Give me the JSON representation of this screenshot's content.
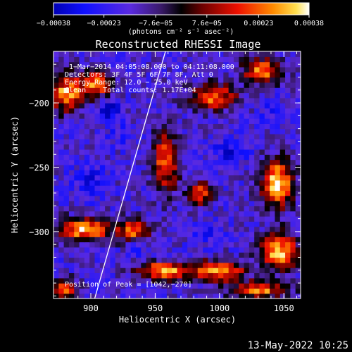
{
  "footer": {
    "timestamp": "13-May-2022 10:25"
  },
  "chart_data": {
    "type": "heatmap",
    "title": "Reconstructed RHESSI Image",
    "xlabel": "Heliocentric X (arcsec)",
    "ylabel": "Heliocentric Y (arcsec)",
    "xlim": [
      871,
      1063
    ],
    "ylim": [
      -352,
      -160
    ],
    "xticks": [
      900,
      950,
      1000,
      1050
    ],
    "yticks": [
      -200,
      -250,
      -300
    ],
    "xtick_labels": [
      "900",
      "950",
      "1000",
      "1050"
    ],
    "ytick_labels": [
      "−200",
      "−250",
      "−300"
    ],
    "colorbar": {
      "range": [
        -0.00038,
        0.00038
      ],
      "ticks": [
        -0.00038,
        -0.00023,
        -7.6e-05,
        7.6e-05,
        0.00023,
        0.00038
      ],
      "tick_labels": [
        "−0.00038",
        "−0.00023",
        "−7.6e−05",
        "7.6e−05",
        "0.00023",
        "0.00038"
      ],
      "unit_label": "(photons cm⁻² s⁻¹ asec⁻²)"
    },
    "annotations": {
      "time": "1−Mar−2014 04:05:08.000 to 04:11:08.000",
      "detectors": "Detectors: 3F 4F 5F 6F 7F 8F, Att 0",
      "energy": "Energy Range: 12.0 − 25.0 keV",
      "clean": "Clean    Total counts: 1.17E+04",
      "peak": "Position of Peak = [1042,−270]"
    },
    "limb_line": {
      "x": [
        903,
        958
      ],
      "y": [
        -352,
        -160
      ]
    },
    "peak": {
      "x": 1042,
      "y": -270
    },
    "bright_regions": [
      {
        "x": 1045,
        "y": -262,
        "rx": 12,
        "ry": 18,
        "value": 0.00038
      },
      {
        "x": 1046,
        "y": -315,
        "rx": 14,
        "ry": 14,
        "value": 0.00034
      },
      {
        "x": 882,
        "y": -192,
        "rx": 14,
        "ry": 14,
        "value": 0.0003
      },
      {
        "x": 895,
        "y": -298,
        "rx": 20,
        "ry": 9,
        "value": 0.00032
      },
      {
        "x": 934,
        "y": -300,
        "rx": 12,
        "ry": 10,
        "value": 0.00028
      },
      {
        "x": 957,
        "y": -330,
        "rx": 20,
        "ry": 7,
        "value": 0.0003
      },
      {
        "x": 1000,
        "y": -330,
        "rx": 20,
        "ry": 8,
        "value": 0.00029
      },
      {
        "x": 958,
        "y": -245,
        "rx": 10,
        "ry": 24,
        "value": 0.00022
      },
      {
        "x": 995,
        "y": -195,
        "rx": 18,
        "ry": 10,
        "value": 0.00024
      },
      {
        "x": 1033,
        "y": -175,
        "rx": 15,
        "ry": 10,
        "value": 0.00025
      },
      {
        "x": 905,
        "y": -185,
        "rx": 10,
        "ry": 10,
        "value": 0.00026
      },
      {
        "x": 1030,
        "y": -345,
        "rx": 22,
        "ry": 6,
        "value": 0.00027
      },
      {
        "x": 880,
        "y": -345,
        "rx": 10,
        "ry": 8,
        "value": 0.00022
      },
      {
        "x": 985,
        "y": -270,
        "rx": 10,
        "ry": 10,
        "value": 0.00018
      }
    ],
    "dim_regions": [
      {
        "x": 914,
        "y": -205,
        "rx": 8,
        "ry": 8,
        "value": -0.00038
      },
      {
        "x": 935,
        "y": -310,
        "rx": 9,
        "ry": 9,
        "value": -0.00034
      },
      {
        "x": 1008,
        "y": -238,
        "rx": 14,
        "ry": 10,
        "value": -0.0003
      },
      {
        "x": 900,
        "y": -260,
        "rx": 12,
        "ry": 14,
        "value": -0.00028
      },
      {
        "x": 990,
        "y": -300,
        "rx": 12,
        "ry": 10,
        "value": -0.00026
      },
      {
        "x": 1040,
        "y": -205,
        "rx": 10,
        "ry": 10,
        "value": -0.00025
      },
      {
        "x": 925,
        "y": -225,
        "rx": 12,
        "ry": 10,
        "value": -0.00024
      }
    ]
  }
}
